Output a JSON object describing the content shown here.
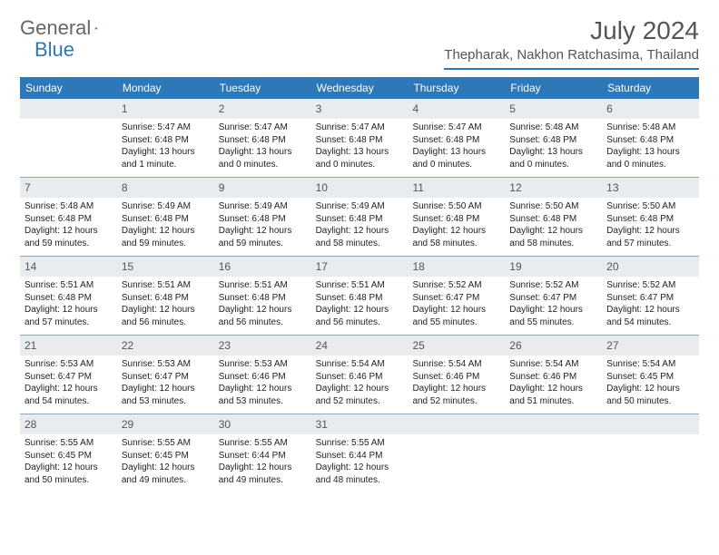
{
  "brand": {
    "part1": "General",
    "part2": "Blue",
    "accent": "#2f78b7",
    "text_color": "#666666"
  },
  "title": "July 2024",
  "location": "Thepharak, Nakhon Ratchasima, Thailand",
  "colors": {
    "header_bg": "#2f78b7",
    "header_text": "#ffffff",
    "daynum_bg": "#e9ecef",
    "week_border": "#88a8c4",
    "body_text": "#222222"
  },
  "dows": [
    "Sunday",
    "Monday",
    "Tuesday",
    "Wednesday",
    "Thursday",
    "Friday",
    "Saturday"
  ],
  "weeks": [
    [
      {
        "n": "",
        "sr": "",
        "ss": "",
        "dl": ""
      },
      {
        "n": "1",
        "sr": "5:47 AM",
        "ss": "6:48 PM",
        "dl": "13 hours and 1 minute."
      },
      {
        "n": "2",
        "sr": "5:47 AM",
        "ss": "6:48 PM",
        "dl": "13 hours and 0 minutes."
      },
      {
        "n": "3",
        "sr": "5:47 AM",
        "ss": "6:48 PM",
        "dl": "13 hours and 0 minutes."
      },
      {
        "n": "4",
        "sr": "5:47 AM",
        "ss": "6:48 PM",
        "dl": "13 hours and 0 minutes."
      },
      {
        "n": "5",
        "sr": "5:48 AM",
        "ss": "6:48 PM",
        "dl": "13 hours and 0 minutes."
      },
      {
        "n": "6",
        "sr": "5:48 AM",
        "ss": "6:48 PM",
        "dl": "13 hours and 0 minutes."
      }
    ],
    [
      {
        "n": "7",
        "sr": "5:48 AM",
        "ss": "6:48 PM",
        "dl": "12 hours and 59 minutes."
      },
      {
        "n": "8",
        "sr": "5:49 AM",
        "ss": "6:48 PM",
        "dl": "12 hours and 59 minutes."
      },
      {
        "n": "9",
        "sr": "5:49 AM",
        "ss": "6:48 PM",
        "dl": "12 hours and 59 minutes."
      },
      {
        "n": "10",
        "sr": "5:49 AM",
        "ss": "6:48 PM",
        "dl": "12 hours and 58 minutes."
      },
      {
        "n": "11",
        "sr": "5:50 AM",
        "ss": "6:48 PM",
        "dl": "12 hours and 58 minutes."
      },
      {
        "n": "12",
        "sr": "5:50 AM",
        "ss": "6:48 PM",
        "dl": "12 hours and 58 minutes."
      },
      {
        "n": "13",
        "sr": "5:50 AM",
        "ss": "6:48 PM",
        "dl": "12 hours and 57 minutes."
      }
    ],
    [
      {
        "n": "14",
        "sr": "5:51 AM",
        "ss": "6:48 PM",
        "dl": "12 hours and 57 minutes."
      },
      {
        "n": "15",
        "sr": "5:51 AM",
        "ss": "6:48 PM",
        "dl": "12 hours and 56 minutes."
      },
      {
        "n": "16",
        "sr": "5:51 AM",
        "ss": "6:48 PM",
        "dl": "12 hours and 56 minutes."
      },
      {
        "n": "17",
        "sr": "5:51 AM",
        "ss": "6:48 PM",
        "dl": "12 hours and 56 minutes."
      },
      {
        "n": "18",
        "sr": "5:52 AM",
        "ss": "6:47 PM",
        "dl": "12 hours and 55 minutes."
      },
      {
        "n": "19",
        "sr": "5:52 AM",
        "ss": "6:47 PM",
        "dl": "12 hours and 55 minutes."
      },
      {
        "n": "20",
        "sr": "5:52 AM",
        "ss": "6:47 PM",
        "dl": "12 hours and 54 minutes."
      }
    ],
    [
      {
        "n": "21",
        "sr": "5:53 AM",
        "ss": "6:47 PM",
        "dl": "12 hours and 54 minutes."
      },
      {
        "n": "22",
        "sr": "5:53 AM",
        "ss": "6:47 PM",
        "dl": "12 hours and 53 minutes."
      },
      {
        "n": "23",
        "sr": "5:53 AM",
        "ss": "6:46 PM",
        "dl": "12 hours and 53 minutes."
      },
      {
        "n": "24",
        "sr": "5:54 AM",
        "ss": "6:46 PM",
        "dl": "12 hours and 52 minutes."
      },
      {
        "n": "25",
        "sr": "5:54 AM",
        "ss": "6:46 PM",
        "dl": "12 hours and 52 minutes."
      },
      {
        "n": "26",
        "sr": "5:54 AM",
        "ss": "6:46 PM",
        "dl": "12 hours and 51 minutes."
      },
      {
        "n": "27",
        "sr": "5:54 AM",
        "ss": "6:45 PM",
        "dl": "12 hours and 50 minutes."
      }
    ],
    [
      {
        "n": "28",
        "sr": "5:55 AM",
        "ss": "6:45 PM",
        "dl": "12 hours and 50 minutes."
      },
      {
        "n": "29",
        "sr": "5:55 AM",
        "ss": "6:45 PM",
        "dl": "12 hours and 49 minutes."
      },
      {
        "n": "30",
        "sr": "5:55 AM",
        "ss": "6:44 PM",
        "dl": "12 hours and 49 minutes."
      },
      {
        "n": "31",
        "sr": "5:55 AM",
        "ss": "6:44 PM",
        "dl": "12 hours and 48 minutes."
      },
      {
        "n": "",
        "sr": "",
        "ss": "",
        "dl": ""
      },
      {
        "n": "",
        "sr": "",
        "ss": "",
        "dl": ""
      },
      {
        "n": "",
        "sr": "",
        "ss": "",
        "dl": ""
      }
    ]
  ],
  "labels": {
    "sunrise": "Sunrise:",
    "sunset": "Sunset:",
    "daylight": "Daylight:"
  }
}
